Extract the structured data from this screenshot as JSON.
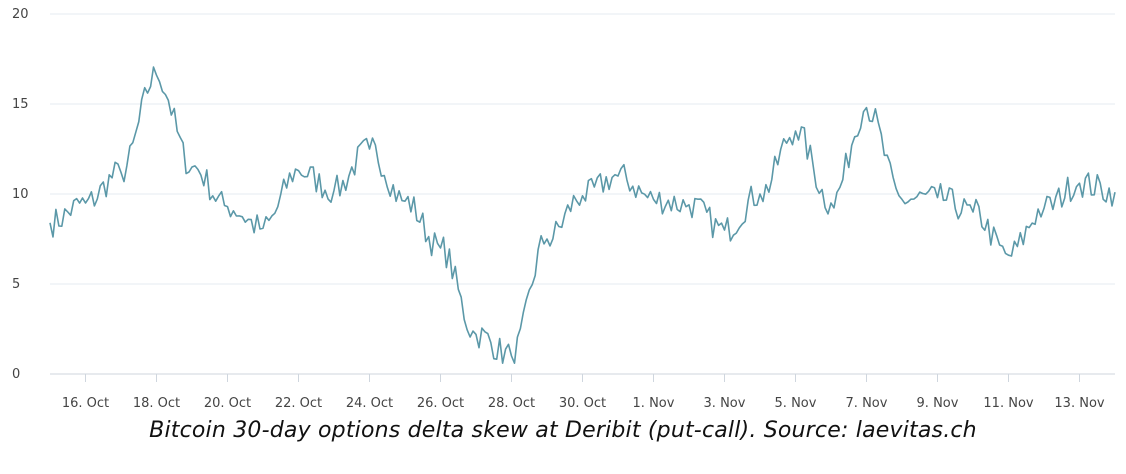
{
  "caption": "Bitcoin 30-day options delta skew at Deribit (put-call). Source: laevitas.ch",
  "chart_data": {
    "type": "line",
    "title": "",
    "xlabel": "",
    "ylabel": "",
    "ylim": [
      0,
      20
    ],
    "yticks": [
      0,
      5,
      10,
      15,
      20
    ],
    "xlim": [
      "2022-10-15",
      "2022-11-14"
    ],
    "xtick_dates": [
      "2022-10-16",
      "2022-10-18",
      "2022-10-20",
      "2022-10-22",
      "2022-10-24",
      "2022-10-26",
      "2022-10-28",
      "2022-10-30",
      "2022-11-01",
      "2022-11-03",
      "2022-11-05",
      "2022-11-07",
      "2022-11-09",
      "2022-11-11",
      "2022-11-13"
    ],
    "xtick_labels": [
      "16. Oct",
      "18. Oct",
      "20. Oct",
      "22. Oct",
      "24. Oct",
      "26. Oct",
      "28. Oct",
      "30. Oct",
      "1. Nov",
      "3. Nov",
      "5. Nov",
      "7. Nov",
      "9. Nov",
      "11. Nov",
      "13. Nov"
    ],
    "grid": true,
    "line_color": "#5b98a8",
    "series": [
      {
        "x": [
          "2022-10-15",
          "2022-10-16",
          "2022-10-17",
          "2022-10-18",
          "2022-10-19",
          "2022-10-20",
          "2022-10-21",
          "2022-10-22",
          "2022-10-23",
          "2022-10-24",
          "2022-10-25",
          "2022-10-26",
          "2022-10-27",
          "2022-10-28",
          "2022-10-29",
          "2022-10-30",
          "2022-10-31",
          "2022-11-01",
          "2022-11-02",
          "2022-11-03",
          "2022-11-04",
          "2022-11-05",
          "2022-11-06",
          "2022-11-07",
          "2022-11-08",
          "2022-11-09",
          "2022-11-10",
          "2022-11-11",
          "2022-11-12",
          "2022-11-13",
          "2022-11-14"
        ],
        "values": [
          8.4,
          9.5,
          11.2,
          16.6,
          11.5,
          9.3,
          8.1,
          11.3,
          10.2,
          12.5,
          9.6,
          7.0,
          2.2,
          1.0,
          7.5,
          9.9,
          11.0,
          9.7,
          9.4,
          8.0,
          10.0,
          13.5,
          9.5,
          14.8,
          9.7,
          9.8,
          9.0,
          6.6,
          9.2,
          10.6,
          10.1
        ]
      }
    ]
  }
}
